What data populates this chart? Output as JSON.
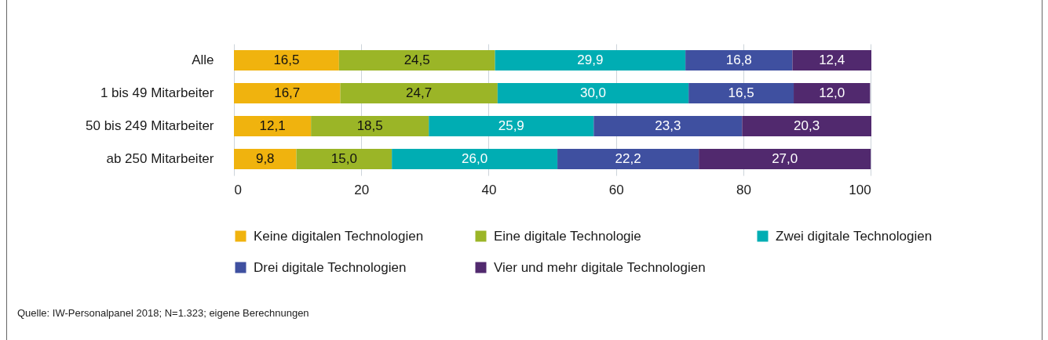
{
  "chart_data": {
    "type": "bar",
    "orientation": "horizontal",
    "stacked": true,
    "categories": [
      "Alle",
      "1 bis 49 Mitarbeiter",
      "50 bis 249 Mitarbeiter",
      "ab 250 Mitarbeiter"
    ],
    "series": [
      {
        "name": "Keine digitalen Technologien",
        "color": "#f0b30e",
        "values": [
          16.5,
          16.7,
          12.1,
          9.8
        ],
        "value_labels": [
          "16,5",
          "16,7",
          "12,1",
          "9,8"
        ]
      },
      {
        "name": "Eine digitale Technologie",
        "color": "#9bb527",
        "values": [
          24.5,
          24.7,
          18.5,
          15.0
        ],
        "value_labels": [
          "24,5",
          "24,7",
          "18,5",
          "15,0"
        ]
      },
      {
        "name": "Zwei digitale Technologien",
        "color": "#00adb3",
        "values": [
          29.9,
          30.0,
          25.9,
          26.0
        ],
        "value_labels": [
          "29,9",
          "30,0",
          "25,9",
          "26,0"
        ]
      },
      {
        "name": "Drei digitale Technologien",
        "color": "#3f50a0",
        "values": [
          16.8,
          16.5,
          23.3,
          22.2
        ],
        "value_labels": [
          "16,8",
          "16,5",
          "23,3",
          "22,2"
        ]
      },
      {
        "name": "Vier und mehr digitale Technologien",
        "color": "#51296e",
        "values": [
          12.4,
          12.0,
          20.3,
          27.0
        ],
        "value_labels": [
          "12,4",
          "12,0",
          "20,3",
          "27,0"
        ]
      }
    ],
    "xlim": [
      0,
      100.1
    ],
    "xticks": [
      0,
      20,
      40,
      60,
      80,
      100
    ],
    "grid": "x",
    "legend": "bottom",
    "annotations": [
      "Quelle: IW-Personalpanel 2018; N=1.323; eigene Berechnungen"
    ]
  }
}
